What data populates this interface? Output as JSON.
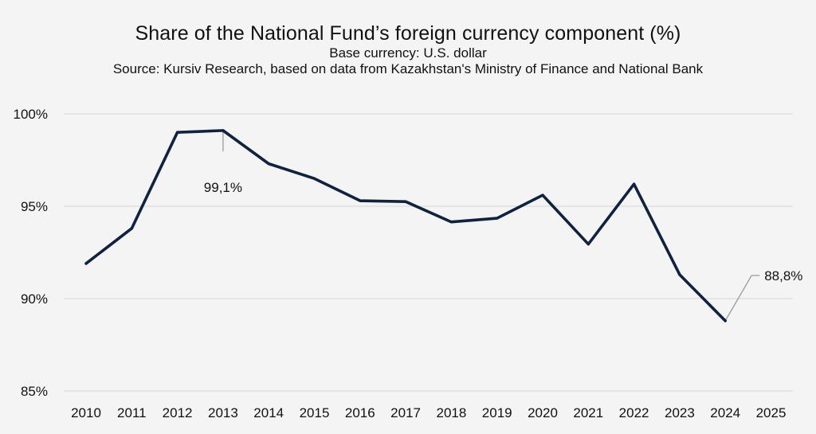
{
  "chart_data": {
    "type": "line",
    "title": "Share of the National Fund’s foreign currency component (%)",
    "subtitle": "Base currency: U.S. dollar",
    "source": "Source: Kursiv Research, based on data from Kazakhstan's Ministry of Finance and National Bank",
    "x": [
      "2010",
      "2011",
      "2012",
      "2013",
      "2014",
      "2015",
      "2016",
      "2017",
      "2018",
      "2019",
      "2020",
      "2021",
      "2022",
      "2023",
      "2024",
      "2025"
    ],
    "series": [
      {
        "values": [
          91.9,
          93.8,
          99.0,
          99.1,
          97.3,
          96.5,
          95.3,
          95.25,
          94.15,
          94.35,
          95.6,
          92.95,
          96.2,
          91.3,
          88.8,
          null
        ],
        "color": "#0f2340"
      }
    ],
    "y_ticks": [
      {
        "value": 100,
        "label": "100%"
      },
      {
        "value": 95,
        "label": "95%"
      },
      {
        "value": 90,
        "label": "90%"
      },
      {
        "value": 85,
        "label": "85%"
      }
    ],
    "ylim": [
      85,
      100
    ],
    "grid": true,
    "annotations": [
      {
        "x": "2013",
        "value": 99.1,
        "label": "99,1%"
      },
      {
        "x": "2024",
        "value": 88.8,
        "label": "88,8%"
      }
    ]
  }
}
